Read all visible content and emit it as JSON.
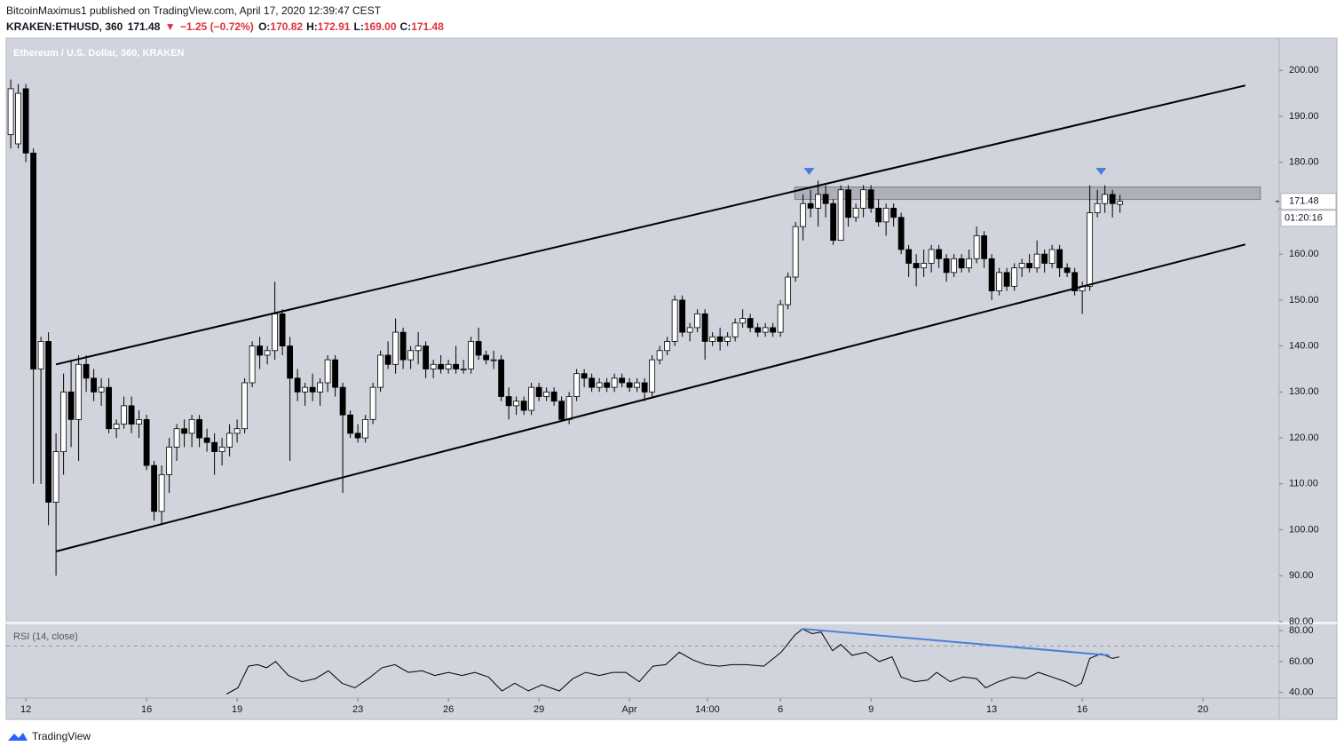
{
  "header": {
    "author_line": "BitcoinMaximus1 published on TradingView.com, April 17, 2020 12:39:47 CEST",
    "symbol": "KRAKEN:ETHUSD, 360",
    "price": "171.48",
    "arrow": "▼",
    "change": "−1.25 (−0.72%)",
    "ohlc": [
      {
        "key": "O:",
        "value": "170.82"
      },
      {
        "key": "H:",
        "value": "172.91"
      },
      {
        "key": "L:",
        "value": "169.00"
      },
      {
        "key": "C:",
        "value": "171.48"
      }
    ]
  },
  "chart_data": [
    {
      "type": "candlestick",
      "title": "Ethereum / U.S. Dollar, 360, KRAKEN",
      "candles": {
        "open": [
          186,
          184,
          196,
          182,
          135,
          141,
          106,
          117,
          130,
          124,
          136,
          133,
          130,
          131,
          122,
          123,
          127,
          123,
          124,
          114,
          104,
          112,
          118,
          122,
          121,
          124,
          120,
          119,
          117,
          118,
          121,
          122,
          132,
          140,
          138,
          139,
          147,
          140,
          133,
          130,
          131,
          130,
          132,
          137,
          131,
          125,
          121,
          120,
          124,
          131,
          138,
          136,
          143,
          137,
          139,
          140,
          135,
          136,
          135,
          136,
          135,
          135,
          141,
          138,
          137,
          137,
          129,
          127,
          128,
          126,
          131,
          129,
          130,
          128,
          124,
          129,
          134,
          133,
          131,
          132,
          131,
          133,
          132,
          131,
          132,
          130,
          137,
          139,
          141,
          150,
          143,
          144,
          147,
          141,
          142,
          141,
          142,
          145,
          146,
          144,
          143,
          144,
          143,
          149,
          155,
          166,
          171,
          170,
          173,
          171,
          163,
          174,
          168,
          170,
          174,
          170,
          167,
          170,
          168,
          161,
          158,
          157,
          158,
          161,
          159,
          156,
          159,
          157,
          159,
          164,
          159,
          152,
          156,
          153,
          157,
          158,
          157,
          160,
          158,
          161,
          157,
          156,
          152,
          153,
          169,
          171,
          173,
          170.82
        ],
        "high": [
          198,
          197,
          197,
          183,
          142,
          143,
          121,
          134,
          137,
          138,
          138,
          135,
          133,
          133,
          124,
          129,
          129,
          126,
          125,
          115,
          114,
          120,
          123,
          124,
          125,
          125,
          122,
          121,
          120,
          123,
          124,
          133,
          141,
          142,
          140,
          154,
          148,
          142,
          135,
          132,
          134,
          133,
          138,
          138,
          132,
          126,
          123,
          125,
          132,
          139,
          141,
          146,
          144,
          140,
          143,
          141,
          137,
          138,
          137,
          140,
          137,
          142,
          144,
          139,
          139,
          138,
          131,
          129,
          129,
          132,
          132,
          131,
          131,
          129,
          130,
          135,
          135,
          134,
          133,
          133,
          134,
          134,
          133,
          133,
          133,
          138,
          140,
          142,
          151,
          151,
          145,
          148,
          148,
          143,
          144,
          143,
          146,
          148,
          147,
          145,
          145,
          145,
          150,
          156,
          167,
          173,
          174,
          176,
          175,
          172,
          175,
          175,
          171,
          175,
          175,
          172,
          171,
          171,
          169,
          162,
          160,
          161,
          162,
          162,
          160,
          160,
          160,
          161,
          166,
          165,
          160,
          157,
          157,
          158,
          159,
          160,
          163,
          161,
          162,
          162,
          158,
          157,
          154,
          175,
          174,
          175,
          174,
          172.91
        ],
        "low": [
          183,
          183,
          180,
          110,
          110,
          101,
          90,
          112,
          118,
          115,
          130,
          128,
          127,
          121,
          120,
          122,
          121,
          120,
          113,
          102,
          101,
          108,
          115,
          118,
          118,
          118,
          117,
          112,
          114,
          116,
          119,
          121,
          131,
          135,
          136,
          137,
          138,
          115,
          128,
          127,
          128,
          127,
          130,
          129,
          108,
          120,
          119,
          119,
          123,
          130,
          135,
          134,
          135,
          135,
          136,
          133,
          133,
          134,
          134,
          134,
          134,
          134,
          137,
          136,
          135,
          128,
          124,
          125,
          125,
          125,
          128,
          128,
          127,
          124,
          123,
          128,
          131,
          130,
          130,
          130,
          130,
          131,
          130,
          130,
          128,
          129,
          136,
          138,
          140,
          142,
          141,
          143,
          137,
          140,
          139,
          140,
          141,
          144,
          143,
          142,
          142,
          142,
          142,
          148,
          154,
          163,
          168,
          166,
          168,
          162,
          163,
          166,
          167,
          168,
          169,
          166,
          164,
          166,
          160,
          155,
          153,
          155,
          156,
          157,
          154,
          155,
          156,
          156,
          158,
          157,
          150,
          151,
          152,
          152,
          155,
          156,
          156,
          156,
          157,
          155,
          155,
          151,
          147,
          152,
          168,
          169,
          168,
          169
        ],
        "close": [
          196,
          195,
          182,
          135,
          141,
          106,
          117,
          130,
          124,
          136,
          133,
          130,
          131,
          122,
          123,
          127,
          123,
          124,
          114,
          104,
          112,
          118,
          122,
          121,
          124,
          120,
          119,
          117,
          118,
          121,
          122,
          132,
          140,
          138,
          139,
          147,
          140,
          133,
          130,
          131,
          130,
          132,
          137,
          131,
          125,
          121,
          120,
          124,
          131,
          138,
          136,
          143,
          137,
          139,
          140,
          135,
          136,
          135,
          136,
          135,
          135,
          141,
          138,
          137,
          137,
          129,
          127,
          128,
          126,
          131,
          129,
          130,
          128,
          124,
          129,
          134,
          133,
          131,
          132,
          131,
          133,
          132,
          131,
          132,
          130,
          137,
          139,
          141,
          150,
          143,
          144,
          147,
          141,
          142,
          141,
          142,
          145,
          146,
          144,
          143,
          144,
          143,
          149,
          155,
          166,
          171,
          170,
          173,
          171,
          163,
          174,
          168,
          170,
          174,
          170,
          167,
          170,
          168,
          161,
          158,
          157,
          158,
          161,
          159,
          156,
          159,
          157,
          159,
          164,
          159,
          152,
          156,
          153,
          157,
          158,
          157,
          160,
          158,
          161,
          157,
          156,
          152,
          153,
          169,
          171,
          173,
          171,
          171.48
        ]
      },
      "up_color": "#ffffff",
      "down_color": "#000000",
      "xlim": [
        -0.6,
        168.1
      ],
      "ylim": [
        80,
        207
      ],
      "yticks": [
        {
          "value": 200,
          "label": "200.00"
        },
        {
          "value": 190,
          "label": "190.00"
        },
        {
          "value": 180,
          "label": "180.00"
        },
        {
          "value": 170,
          "label": "170.00"
        },
        {
          "value": 160,
          "label": "160.00"
        },
        {
          "value": 150,
          "label": "150.00"
        },
        {
          "value": 140,
          "label": "140.00"
        },
        {
          "value": 130,
          "label": "130.00"
        },
        {
          "value": 120,
          "label": "120.00"
        },
        {
          "value": 110,
          "label": "110.00"
        },
        {
          "value": 100,
          "label": "100.00"
        },
        {
          "value": 90,
          "label": "90.00"
        },
        {
          "value": 80,
          "label": "80.00"
        }
      ],
      "xticks": [
        {
          "value": 2,
          "label": "12"
        },
        {
          "value": 18,
          "label": "16"
        },
        {
          "value": 30,
          "label": "19"
        },
        {
          "value": 46,
          "label": "23"
        },
        {
          "value": 58,
          "label": "26"
        },
        {
          "value": 70,
          "label": "29"
        },
        {
          "value": 82,
          "label": "Apr"
        },
        {
          "value": 92.33,
          "label": "14:00"
        },
        {
          "value": 102,
          "label": "6"
        },
        {
          "value": 114,
          "label": "9"
        },
        {
          "value": 130,
          "label": "13"
        },
        {
          "value": 142,
          "label": "16"
        },
        {
          "value": 158,
          "label": "20"
        }
      ],
      "last_price": {
        "value": 171.48,
        "label": "171.48"
      },
      "countdown": "01:20:16",
      "channel": [
        {
          "x": [
            6,
            163.6
          ],
          "y": [
            136,
            196.7
          ]
        },
        {
          "x": [
            6,
            163.6
          ],
          "y": [
            95.3,
            162.1
          ]
        }
      ],
      "zone": {
        "x": [
          103.9,
          165.6
        ],
        "y": [
          171.9,
          174.6
        ]
      },
      "markers": {
        "x": [
          105.8,
          144.5
        ],
        "y": [
          178,
          178
        ],
        "color": "#4a7fd8"
      }
    },
    {
      "type": "line",
      "title": "RSI (14, close)",
      "color": "#000000",
      "x": [
        28.6,
        30.1,
        31.5,
        32.7,
        33.9,
        35.1,
        36.8,
        38.6,
        40.4,
        42.1,
        43.9,
        45.6,
        47.4,
        49.2,
        50.9,
        52.7,
        54.5,
        56.2,
        58,
        59.8,
        61.5,
        63.3,
        65.1,
        66.8,
        68.6,
        70.4,
        72.7,
        74.5,
        76.2,
        78,
        79.8,
        81.5,
        83.3,
        85.1,
        86.8,
        88.6,
        90.4,
        92.1,
        93.9,
        95.6,
        97.4,
        99.8,
        102.1,
        103.9,
        104.9,
        106.2,
        107.4,
        108.9,
        110,
        111.5,
        113.3,
        115.1,
        116.8,
        118,
        119.8,
        121.5,
        122.7,
        124.5,
        126.2,
        128,
        129.2,
        130.9,
        132.7,
        134.5,
        136.2,
        138,
        139.8,
        141.1,
        141.9,
        143,
        144.5,
        146,
        146.9
      ],
      "values": [
        39,
        43,
        57,
        58,
        56,
        60,
        51,
        47,
        49,
        54,
        46,
        43,
        49,
        56,
        58,
        53,
        54,
        51,
        53,
        51,
        53,
        50,
        41,
        46,
        41,
        45,
        41,
        49,
        53,
        51,
        53,
        53,
        47,
        57,
        58,
        66,
        61,
        58,
        57,
        58,
        58,
        57,
        66,
        77,
        81,
        78,
        79,
        67,
        71,
        64,
        66,
        60,
        63,
        50,
        47,
        48,
        53,
        47,
        50,
        49,
        43,
        47,
        50,
        49,
        53,
        50,
        47,
        44,
        46,
        62,
        65,
        62,
        63
      ],
      "xlim": [
        -0.6,
        168.1
      ],
      "ylim": [
        37,
        84
      ],
      "yticks": [
        {
          "value": 80,
          "label": "80.00"
        },
        {
          "value": 60,
          "label": "60.00"
        },
        {
          "value": 40,
          "label": "40.00"
        }
      ],
      "reference": 70,
      "trendline": {
        "x": [
          104.9,
          145.6
        ],
        "y": [
          81.1,
          64
        ],
        "color": "#4a7fd8"
      }
    }
  ],
  "footer": "TradingView"
}
